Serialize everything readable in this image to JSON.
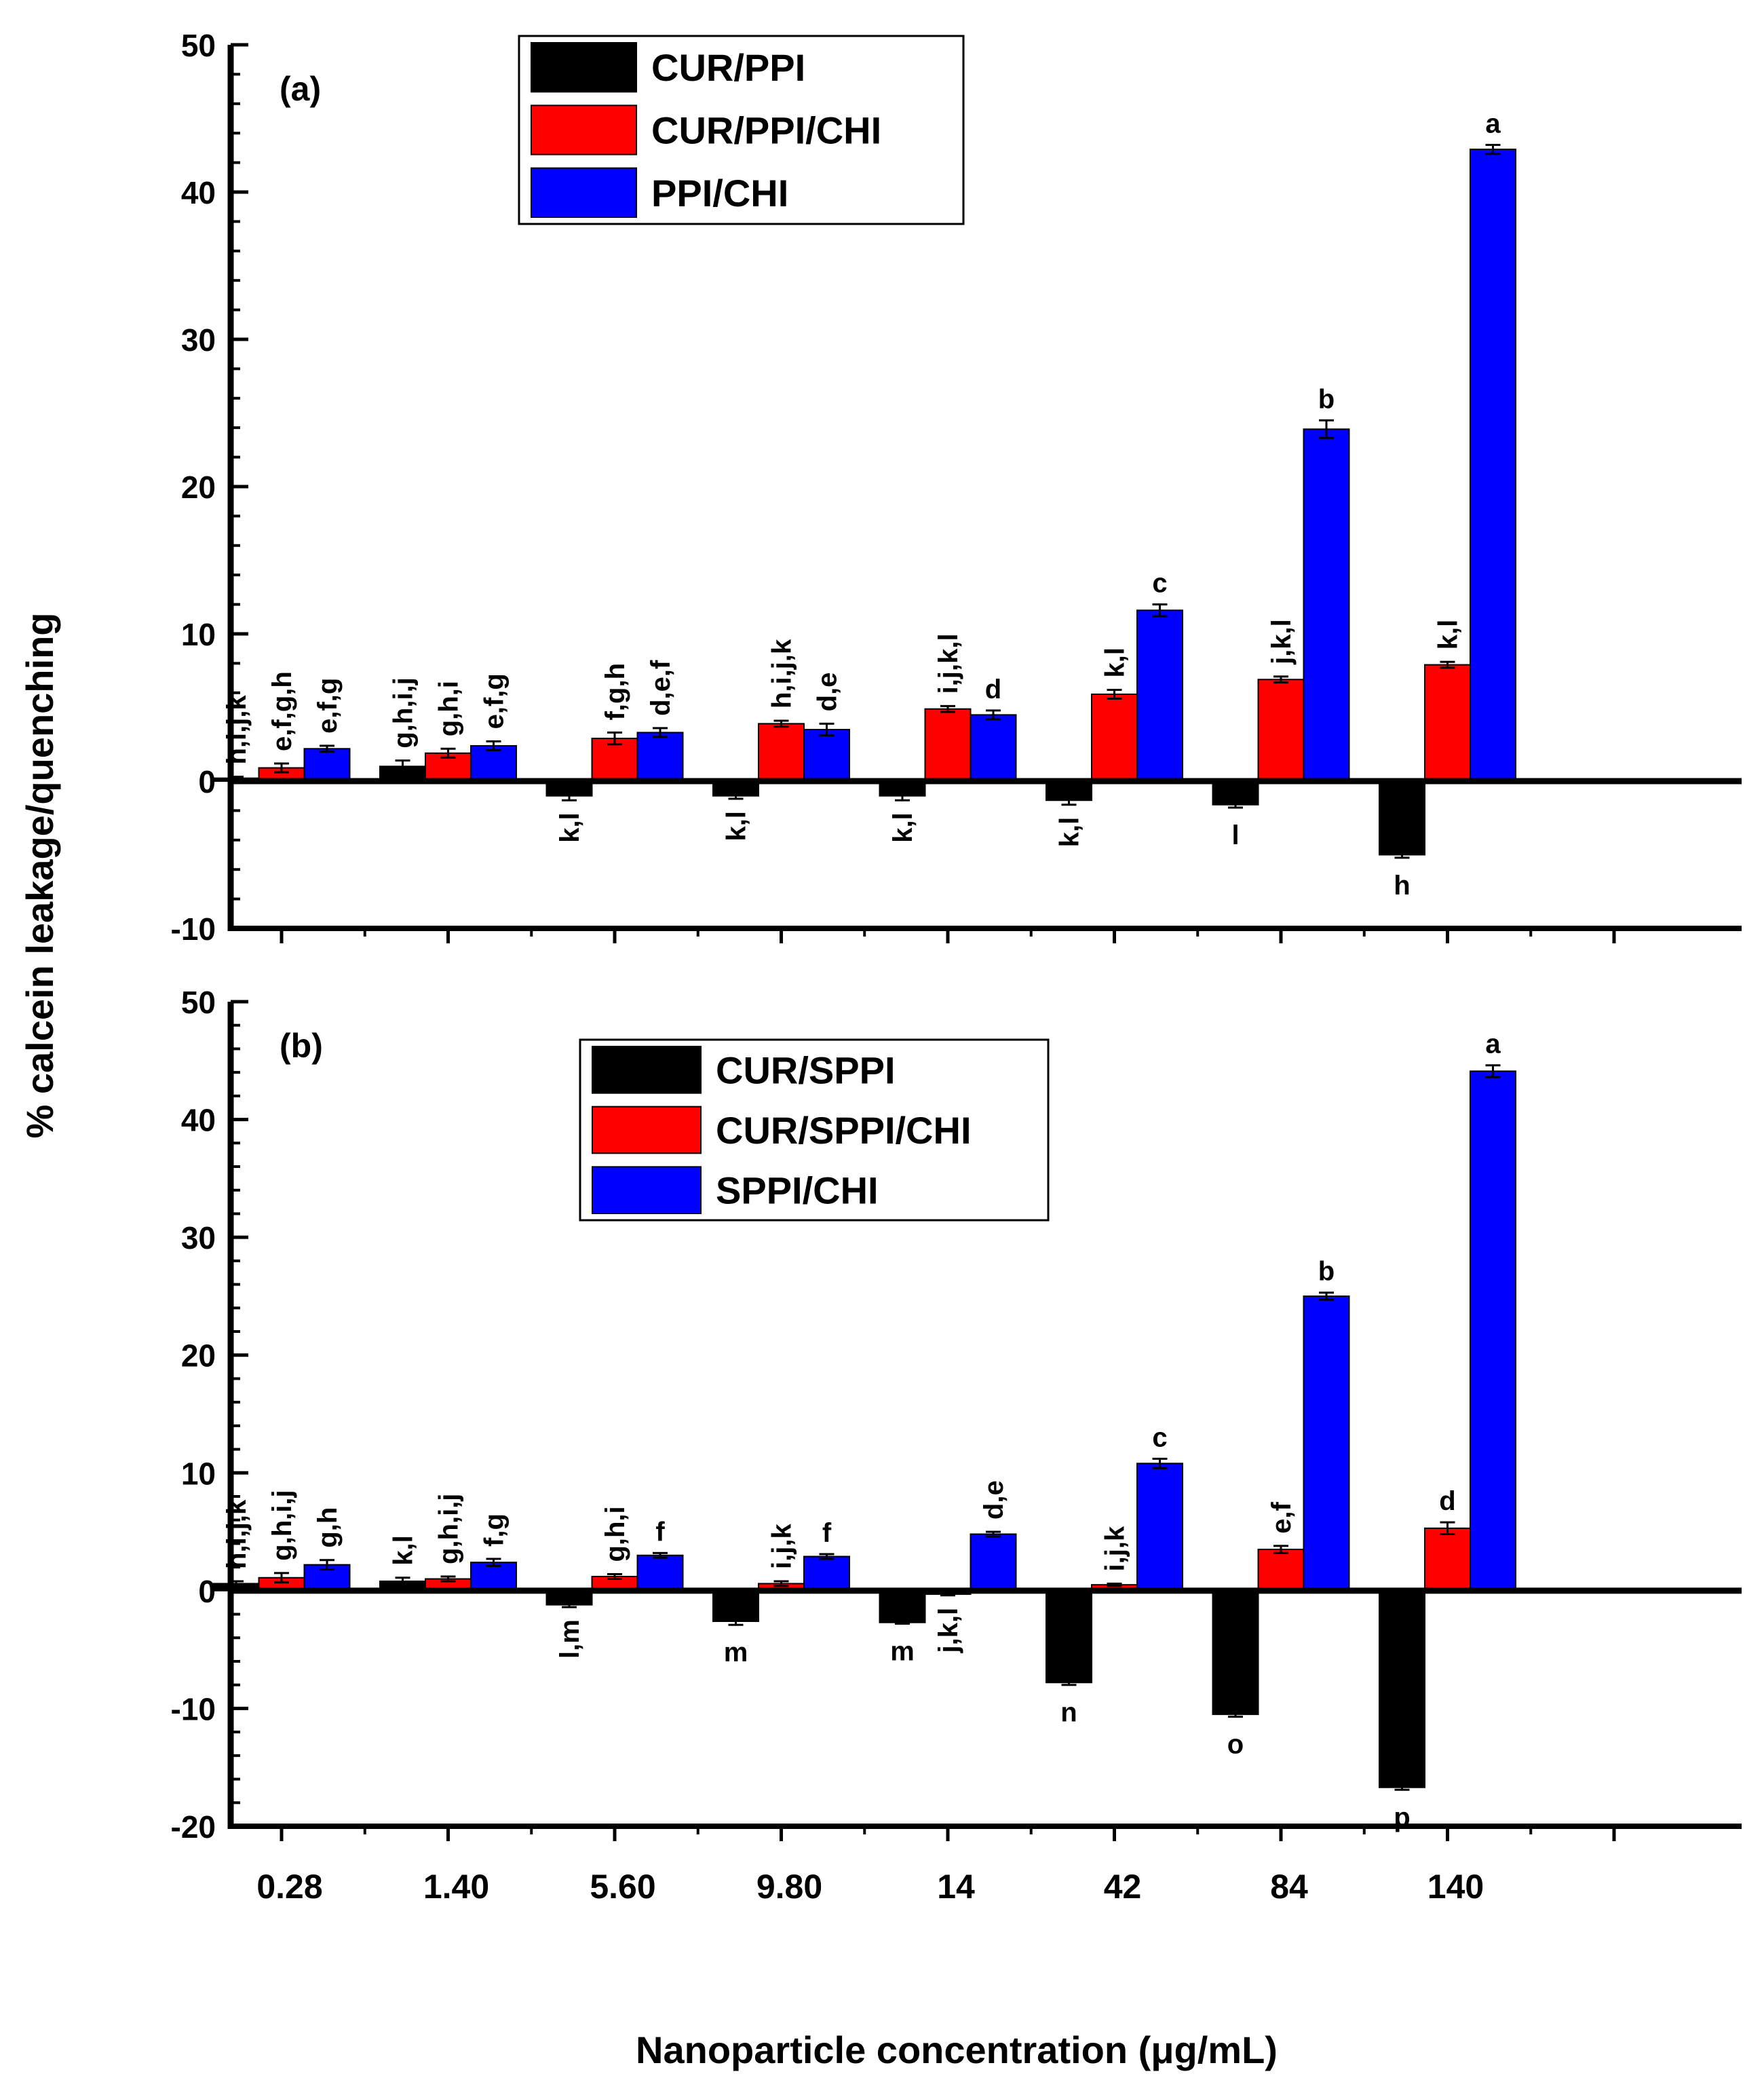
{
  "chart_data": [
    {
      "panel_label": "(a)",
      "type": "bar",
      "ylim": [
        -10,
        50
      ],
      "yticks": [
        -10,
        0,
        10,
        20,
        30,
        40,
        50
      ],
      "categories": [
        "0.28",
        "1.40",
        "5.60",
        "9.80",
        "14",
        "42",
        "84",
        "140"
      ],
      "series": [
        {
          "name": "CUR/PPI",
          "color": "#000000",
          "values": [
            0.2,
            1.0,
            -1.0,
            -1.0,
            -1.0,
            -1.3,
            -1.6,
            -5.0
          ],
          "errors": [
            0.1,
            0.4,
            0.3,
            0.2,
            0.3,
            0.3,
            0.2,
            0.2
          ],
          "labels": [
            "h,i,j,k",
            "g,h,i,j",
            "k,l",
            "k,l",
            "k,l",
            "k,l",
            "l",
            "h"
          ]
        },
        {
          "name": "CUR/PPI/CHI",
          "color": "#ff0000",
          "values": [
            0.9,
            1.9,
            2.9,
            3.9,
            4.9,
            5.9,
            6.9,
            7.9
          ],
          "errors": [
            0.3,
            0.3,
            0.4,
            0.2,
            0.2,
            0.3,
            0.2,
            0.2
          ],
          "labels": [
            "e,f,g,h",
            "g,h,i",
            "f,g,h",
            "h,i,j,k",
            "i,j,k,l",
            "k,l",
            "j,k,l",
            "k,l"
          ]
        },
        {
          "name": "PPI/CHI",
          "color": "#0000ff",
          "values": [
            2.2,
            2.4,
            3.3,
            3.5,
            4.5,
            11.6,
            23.9,
            42.9
          ],
          "errors": [
            0.2,
            0.3,
            0.3,
            0.4,
            0.3,
            0.4,
            0.6,
            0.3
          ],
          "labels": [
            "e,f,g",
            "e,f,g",
            "d,e,f",
            "d,e",
            "d",
            "c",
            "b",
            "a"
          ]
        }
      ]
    },
    {
      "panel_label": "(b)",
      "type": "bar",
      "ylim": [
        -20,
        50
      ],
      "yticks": [
        -20,
        -10,
        0,
        10,
        20,
        30,
        40,
        50
      ],
      "categories": [
        "0.28",
        "1.40",
        "5.60",
        "9.80",
        "14",
        "42",
        "84",
        "140"
      ],
      "series": [
        {
          "name": "CUR/SPPI",
          "color": "#000000",
          "values": [
            0.6,
            0.8,
            -1.2,
            -2.6,
            -2.7,
            -7.8,
            -10.5,
            -16.7
          ],
          "errors": [
            0.2,
            0.3,
            0.2,
            0.3,
            0.1,
            0.2,
            0.2,
            0.2
          ],
          "labels": [
            "h,i,j,k",
            "k,l",
            "l,m",
            "m",
            "m",
            "n",
            "o",
            "p"
          ]
        },
        {
          "name": "CUR/SPPI/CHI",
          "color": "#ff0000",
          "values": [
            1.1,
            1.0,
            1.2,
            0.6,
            -0.3,
            0.5,
            3.5,
            5.3
          ],
          "errors": [
            0.4,
            0.2,
            0.2,
            0.2,
            0.1,
            0.1,
            0.3,
            0.5
          ],
          "labels": [
            "g,h,i,j",
            "g,h,i,j",
            "g,h,i",
            "i,j,k",
            "j,k,l",
            "i,j,k",
            "e,f",
            "d"
          ]
        },
        {
          "name": "SPPI/CHI",
          "color": "#0000ff",
          "values": [
            2.2,
            2.4,
            3.0,
            2.9,
            4.8,
            10.8,
            25.0,
            44.1
          ],
          "errors": [
            0.4,
            0.3,
            0.2,
            0.2,
            0.2,
            0.4,
            0.3,
            0.5
          ],
          "labels": [
            "g,h",
            "f,g",
            "f",
            "f",
            "d,e",
            "c",
            "b",
            "a"
          ]
        }
      ]
    }
  ],
  "ylabel": "% calcein leakage/quenching",
  "xlabel": "Nanoparticle concentration (μg/mL)"
}
